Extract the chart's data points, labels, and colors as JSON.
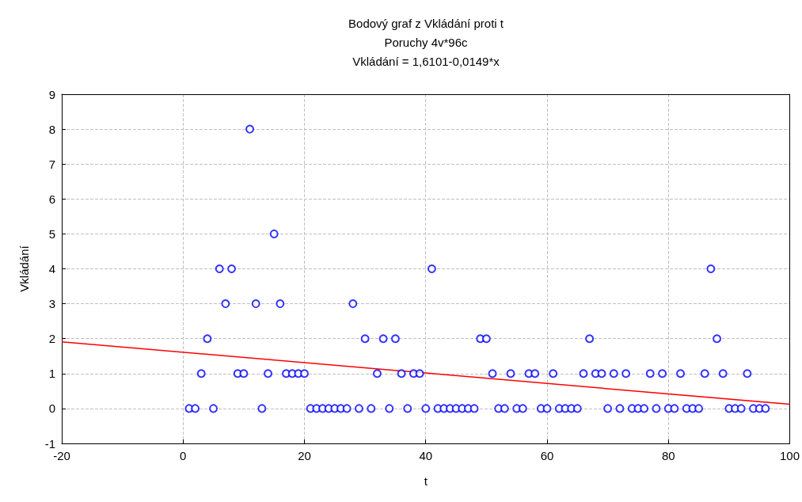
{
  "chart_data": {
    "type": "scatter",
    "title": "Bodový graf z Vkládání proti t",
    "subtitle": "Poruchy 4v*96c",
    "annotations": [
      "Vkládání = 1,6101-0,0149*x"
    ],
    "xlabel": "t",
    "ylabel": "Vkládání",
    "xlim": [
      -20,
      100
    ],
    "xticks": [
      -20,
      0,
      20,
      40,
      60,
      80,
      100
    ],
    "ylim": [
      -1,
      9
    ],
    "yticks": [
      -1,
      0,
      1,
      2,
      3,
      4,
      5,
      6,
      7,
      8,
      9
    ],
    "grid": true,
    "marker": "circle",
    "series": [
      {
        "color": "#0000ff",
        "x": [
          1,
          2,
          3,
          4,
          5,
          6,
          7,
          8,
          9,
          10,
          11,
          12,
          13,
          14,
          15,
          16,
          17,
          18,
          19,
          20,
          21,
          22,
          23,
          24,
          25,
          26,
          27,
          28,
          29,
          30,
          31,
          32,
          33,
          34,
          35,
          36,
          37,
          38,
          39,
          40,
          41,
          42,
          43,
          44,
          45,
          46,
          47,
          48,
          49,
          50,
          51,
          52,
          53,
          54,
          55,
          56,
          57,
          58,
          59,
          60,
          61,
          62,
          63,
          64,
          65,
          66,
          67,
          68,
          69,
          70,
          71,
          72,
          73,
          74,
          75,
          76,
          77,
          78,
          79,
          80,
          81,
          82,
          83,
          84,
          85,
          86,
          87,
          88,
          89,
          90,
          91,
          92,
          93,
          94,
          95,
          96
        ],
        "values": [
          0,
          0,
          1,
          2,
          0,
          4,
          3,
          4,
          1,
          1,
          8,
          3,
          0,
          1,
          5,
          3,
          1,
          1,
          1,
          1,
          0,
          0,
          0,
          0,
          0,
          0,
          0,
          3,
          0,
          2,
          0,
          1,
          2,
          0,
          2,
          1,
          0,
          1,
          1,
          0,
          4,
          0,
          0,
          0,
          0,
          0,
          0,
          0,
          2,
          2,
          1,
          0,
          0,
          1,
          0,
          0,
          1,
          1,
          0,
          0,
          1,
          0,
          0,
          0,
          0,
          1,
          2,
          1,
          1,
          0,
          1,
          0,
          1,
          0,
          0,
          0,
          1,
          0,
          1,
          0,
          0,
          1,
          0,
          0,
          0,
          1,
          4,
          2,
          1,
          0,
          0,
          0,
          1,
          0,
          0,
          0
        ]
      },
      {
        "type": "line",
        "color": "#ff0000",
        "marker": "none",
        "line_style": "solid",
        "x": [
          -20,
          100
        ],
        "values": [
          1.91,
          0.12
        ]
      }
    ]
  }
}
